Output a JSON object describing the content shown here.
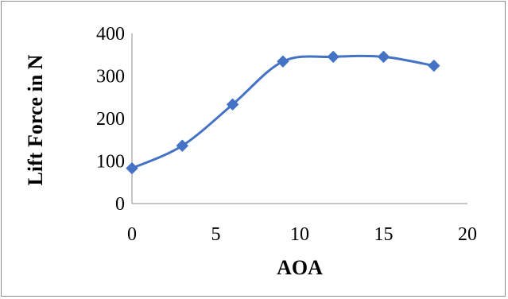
{
  "chart_data": {
    "type": "line",
    "title": "",
    "xlabel": "AOA",
    "ylabel": "Lift Force in N",
    "xlim": [
      0,
      20
    ],
    "ylim": [
      0,
      400
    ],
    "xticks": [
      0,
      5,
      10,
      15,
      20
    ],
    "yticks": [
      0,
      100,
      200,
      300,
      400
    ],
    "grid": false,
    "legend": "none",
    "series": [
      {
        "x": [
          0,
          3,
          6,
          9,
          12,
          15,
          18
        ],
        "y": [
          83,
          136,
          233,
          334,
          345,
          345,
          324
        ],
        "color": "#4472c4",
        "marker": "diamond",
        "smooth": true
      }
    ]
  }
}
